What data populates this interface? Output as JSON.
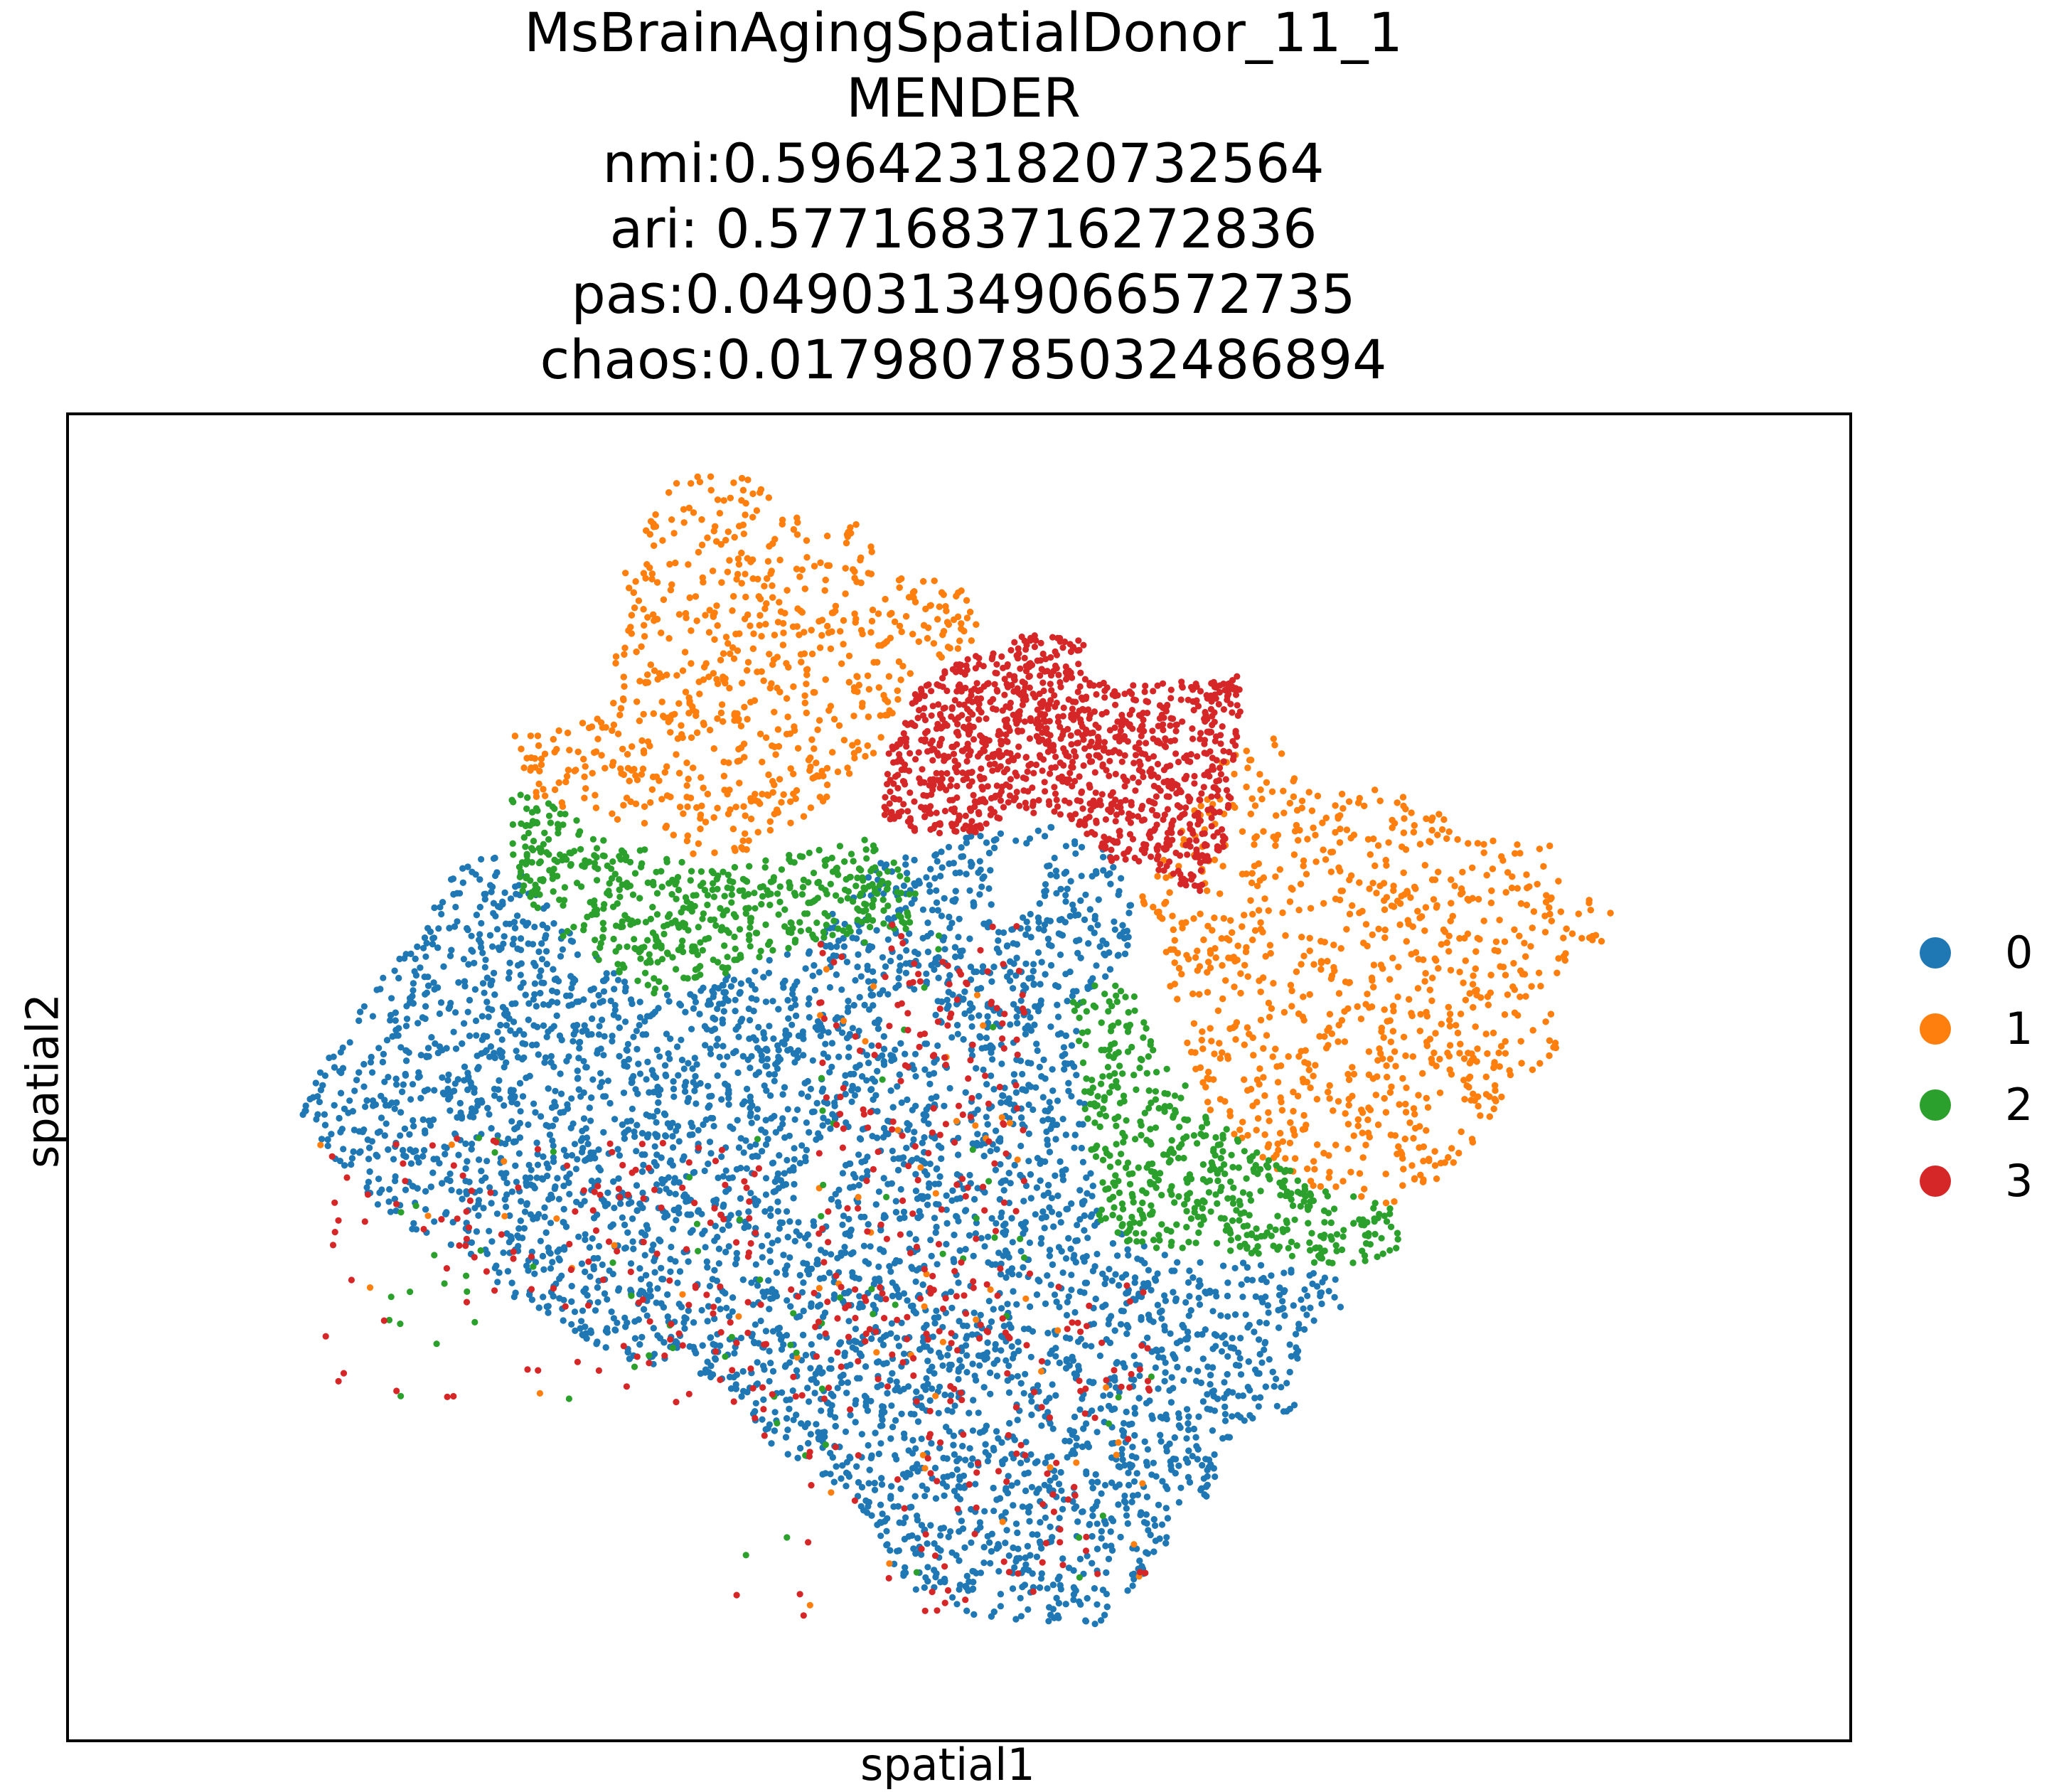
{
  "title_lines": [
    "MsBrainAgingSpatialDonor_11_1",
    "MENDER",
    "nmi:0.5964231820732564",
    "ari: 0.5771683716272836",
    "pas:0.04903134906657273 5",
    "chaos:0.017980785032486894"
  ],
  "chart_data": {
    "type": "scatter",
    "title": "MsBrainAgingSpatialDonor_11_1\nMENDER\nnmi:0.5964231820732564\nari: 0.5771683716272836\npas:0.049031349066572735\nchaos:0.017980785032486894",
    "xlabel": "spatial1",
    "ylabel": "spatial2",
    "ticks": "none",
    "grid": false,
    "legend_position": "right",
    "series": [
      {
        "name": "0",
        "color": "#1f77b4"
      },
      {
        "name": "1",
        "color": "#ff7f0e"
      },
      {
        "name": "2",
        "color": "#2ca02c"
      },
      {
        "name": "3",
        "color": "#d62728"
      }
    ]
  }
}
